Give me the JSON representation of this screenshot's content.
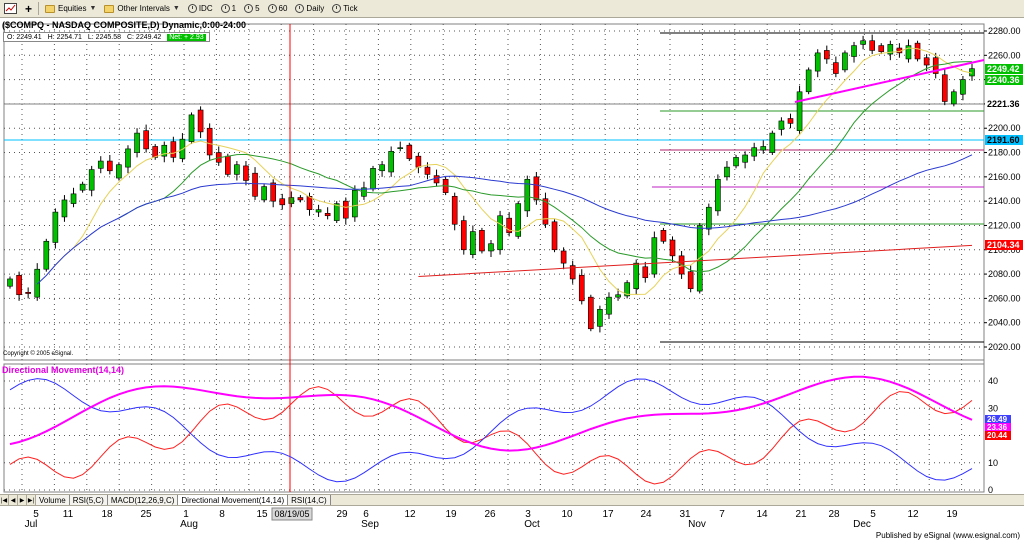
{
  "toolbar": {
    "equities": "Equities",
    "other_intervals": "Other Intervals",
    "idc": "IDC",
    "i1": "1",
    "i5": "5",
    "i60": "60",
    "daily": "Daily",
    "tick": "Tick"
  },
  "header": {
    "title": "($COMPQ - NASDAQ COMPOSITE,D) Dynamic,0:00-24:00",
    "open": "O: 2249.41",
    "high": "H: 2254.71",
    "low": "L: 2245.58",
    "close": "C: 2249.42",
    "net": "Net: + 2.93"
  },
  "copyright": "Copyright © 2005 eSignal.",
  "indicator_title": "Directional Movement(14,14)",
  "tabs": [
    "Volume",
    "RSI(5,C)",
    "MACD(12,26,9,C)",
    "Directional Movement(14,14)",
    "RSI(14,C)"
  ],
  "footer": "Published by eSignal (www.esignal.com)",
  "cursor_date": "08/19/05",
  "date_labels": [
    "5",
    "11",
    "18",
    "25",
    "1",
    "8",
    "15",
    "29",
    "6",
    "12",
    "19",
    "26",
    "3",
    "10",
    "17",
    "24",
    "31",
    "7",
    "14",
    "21",
    "28",
    "5",
    "12",
    "19"
  ],
  "month_labels": [
    "Jul",
    "Aug",
    "Sep",
    "Oct",
    "Nov",
    "Dec"
  ],
  "price_axis": [
    "2280.00",
    "2260.00",
    "2240.00",
    "2220.00",
    "2200.00",
    "2180.00",
    "2160.00",
    "2140.00",
    "2120.00",
    "2100.00",
    "2080.00",
    "2060.00",
    "2040.00",
    "2020.00"
  ],
  "price_tags": [
    {
      "text": "2249.42",
      "bg": "#00c000",
      "fg": "#ffffff"
    },
    {
      "text": "2240.36",
      "bg": "#00c000",
      "fg": "#ffffff"
    },
    {
      "text": "2221.36",
      "bg": "#ffffff",
      "fg": "#000000"
    },
    {
      "text": "2191.60",
      "bg": "#00c0ff",
      "fg": "#000000"
    },
    {
      "text": "2104.34",
      "bg": "#ff0000",
      "fg": "#ffffff"
    }
  ],
  "dm_axis": [
    "40",
    "30",
    "20",
    "10",
    "0"
  ],
  "dm_tags": [
    {
      "text": "26.49",
      "bg": "#4040ff",
      "fg": "#ffffff"
    },
    {
      "text": "23.36",
      "bg": "#ff00ff",
      "fg": "#ffffff"
    },
    {
      "text": "20.44",
      "bg": "#ff0000",
      "fg": "#ffffff"
    }
  ],
  "colors": {
    "up": "#00c000",
    "down": "#ff0000",
    "ma_short": "#e6d25a",
    "ma_mid": "#2a9a2a",
    "ma_long": "#2a3ad0",
    "ma_200": "#e02020",
    "cursor": "#ff0000",
    "cyan": "#00c0ff",
    "magenta": "#ff00ff"
  },
  "chart_data": {
    "type": "candlestick",
    "title": "($COMPQ - NASDAQ COMPOSITE,D) Dynamic,0:00-24:00",
    "ylim": [
      2015,
      2285
    ],
    "closes": [
      2076,
      2063,
      2064,
      2084,
      2107,
      2131,
      2141,
      2146,
      2154,
      2166,
      2173,
      2165,
      2170,
      2183,
      2196,
      2183,
      2176,
      2186,
      2176,
      2191,
      2211,
      2197,
      2178,
      2172,
      2162,
      2170,
      2157,
      2144,
      2152,
      2140,
      2137,
      2143,
      2141,
      2133,
      2133,
      2128,
      2138,
      2126,
      2149,
      2151,
      2167,
      2170,
      2181,
      2184,
      2175,
      2168,
      2162,
      2155,
      2147,
      2121,
      2100,
      2115,
      2099,
      2105,
      2128,
      2114,
      2138,
      2158,
      2141,
      2121,
      2100,
      2089,
      2076,
      2058,
      2035,
      2051,
      2061,
      2063,
      2073,
      2089,
      2077,
      2110,
      2107,
      2095,
      2080,
      2068,
      2120,
      2135,
      2158,
      2168,
      2176,
      2178,
      2184,
      2185,
      2196,
      2206,
      2204,
      2230,
      2248,
      2262,
      2257,
      2245,
      2262,
      2268,
      2272,
      2264,
      2263,
      2269,
      2262,
      2268,
      2257,
      2252,
      2245,
      2222,
      2230,
      2240,
      2249
    ]
  }
}
